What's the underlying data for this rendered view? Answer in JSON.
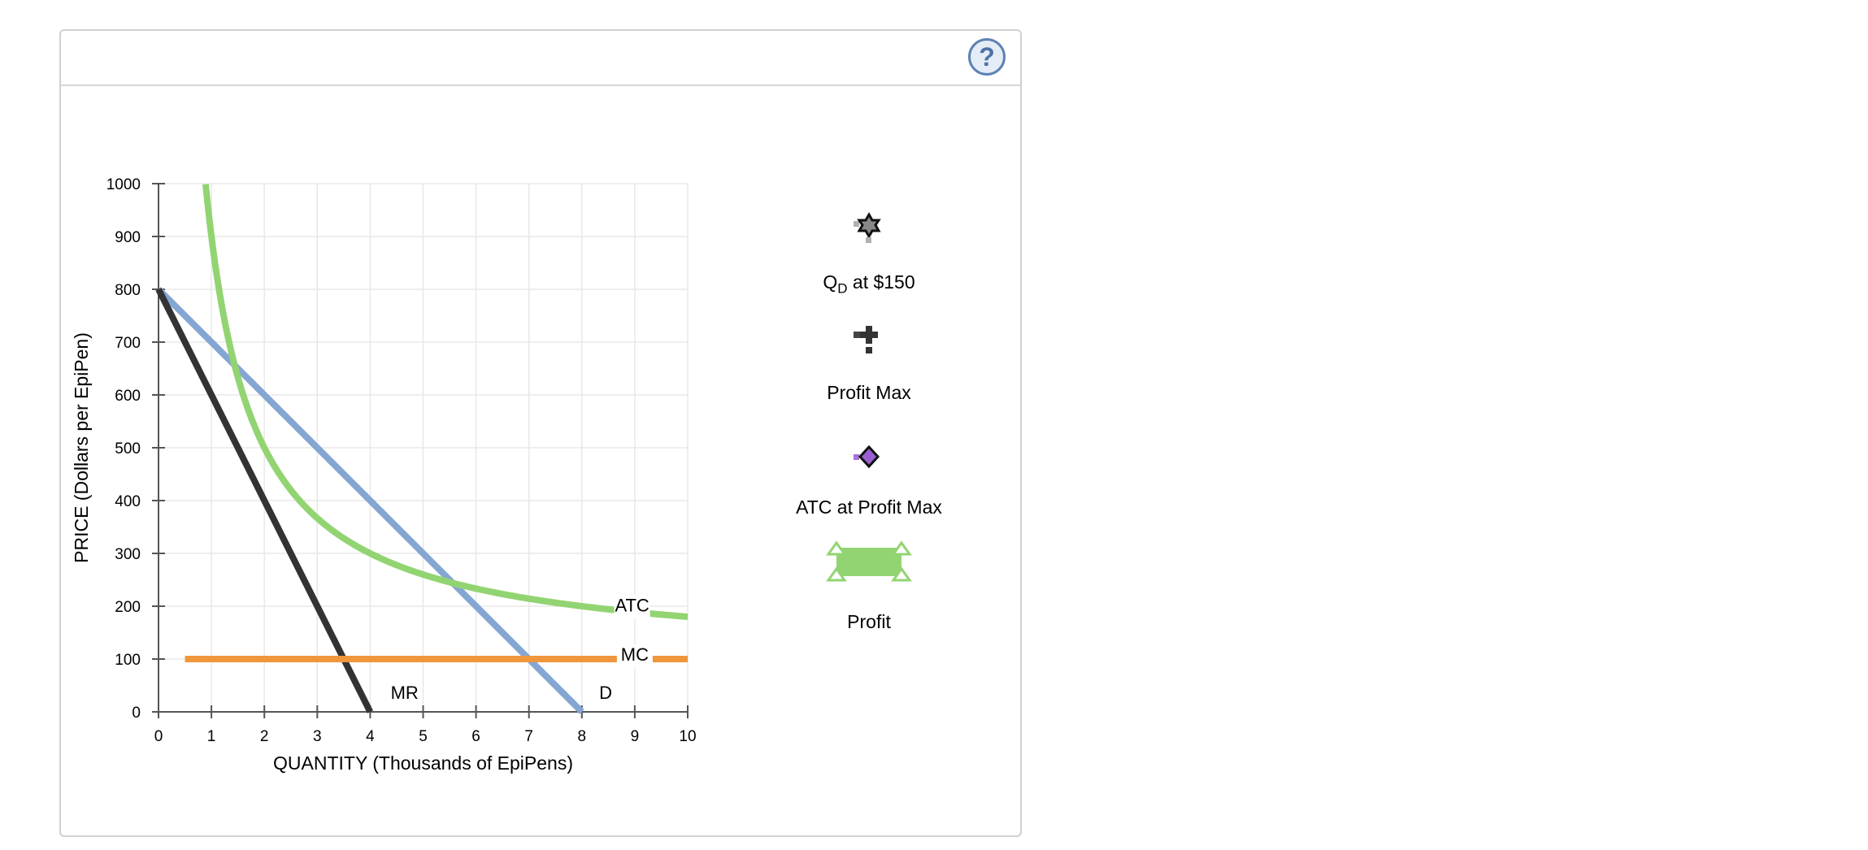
{
  "help": {
    "label": "?"
  },
  "chart_data": {
    "type": "line",
    "xlabel": "QUANTITY (Thousands of EpiPens)",
    "ylabel": "PRICE (Dollars per EpiPen)",
    "xlim": [
      0,
      10
    ],
    "ylim": [
      0,
      1000
    ],
    "x_ticks": [
      "0",
      "1",
      "2",
      "3",
      "4",
      "5",
      "6",
      "7",
      "8",
      "9",
      "10"
    ],
    "y_ticks": [
      "0",
      "100",
      "200",
      "300",
      "400",
      "500",
      "600",
      "700",
      "800",
      "900",
      "1000"
    ],
    "grid": true,
    "series": [
      {
        "name": "D",
        "color": "#84a6d2",
        "points": [
          [
            0,
            800
          ],
          [
            8,
            0
          ]
        ]
      },
      {
        "name": "MR",
        "color": "#333333",
        "points": [
          [
            0,
            800
          ],
          [
            4,
            0
          ]
        ]
      },
      {
        "name": "MC",
        "color": "#f0963c",
        "points": [
          [
            0.5,
            100
          ],
          [
            10,
            100
          ]
        ]
      },
      {
        "name": "ATC",
        "color": "#92d472",
        "formula": "100 + 800/x",
        "x_range": [
          0.89,
          10
        ]
      }
    ]
  },
  "palette": {
    "qd": {
      "label": "Q",
      "sub": "D",
      "suffix": " at $150"
    },
    "profit_max": {
      "label": "Profit Max"
    },
    "atc_profit_max": {
      "label": "ATC at Profit Max"
    },
    "profit": {
      "label": "Profit"
    }
  }
}
